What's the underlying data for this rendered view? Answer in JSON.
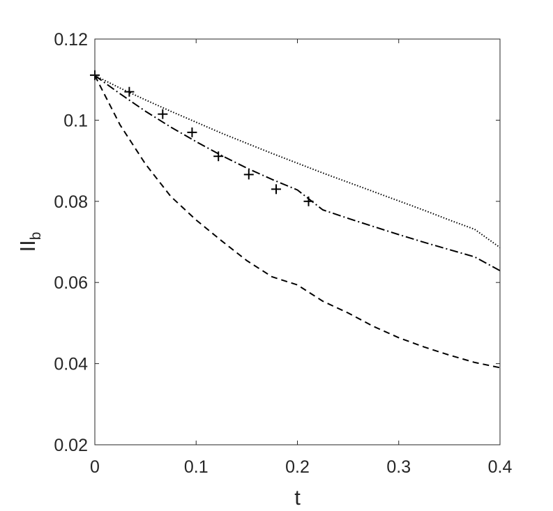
{
  "chart_data": {
    "type": "line",
    "xlabel": "t",
    "ylabel": "II",
    "ylabel_subscript": "b",
    "xlim": [
      0,
      0.4
    ],
    "ylim": [
      0.02,
      0.12
    ],
    "xticks": [
      0,
      0.1,
      0.2,
      0.3,
      0.4
    ],
    "xtick_labels": [
      "0",
      "0.1",
      "0.2",
      "0.3",
      "0.4"
    ],
    "yticks": [
      0.02,
      0.04,
      0.06,
      0.08,
      0.1,
      0.12
    ],
    "ytick_labels": [
      "0.02",
      "0.04",
      "0.06",
      "0.08",
      "0.1",
      "0.12"
    ],
    "grid": false,
    "legend": null,
    "series": [
      {
        "style": "dotted",
        "color": "#000000",
        "x": [
          0,
          0.025,
          0.05,
          0.075,
          0.1,
          0.125,
          0.15,
          0.175,
          0.2,
          0.225,
          0.25,
          0.275,
          0.3,
          0.325,
          0.35,
          0.375,
          0.4
        ],
        "y": [
          0.111,
          0.1079,
          0.105,
          0.1022,
          0.0995,
          0.0968,
          0.0943,
          0.0918,
          0.0894,
          0.087,
          0.0847,
          0.0824,
          0.0801,
          0.0778,
          0.0754,
          0.0731,
          0.0686
        ]
      },
      {
        "style": "dashdot",
        "color": "#000000",
        "x": [
          0,
          0.025,
          0.05,
          0.075,
          0.1,
          0.125,
          0.15,
          0.175,
          0.2,
          0.225,
          0.25,
          0.275,
          0.3,
          0.325,
          0.35,
          0.375,
          0.4
        ],
        "y": [
          0.111,
          0.1065,
          0.1022,
          0.0983,
          0.0947,
          0.0913,
          0.0882,
          0.0854,
          0.0828,
          0.0779,
          0.0758,
          0.0738,
          0.0718,
          0.0699,
          0.0681,
          0.0663,
          0.0629
        ]
      },
      {
        "style": "dashed",
        "color": "#000000",
        "x": [
          0,
          0.025,
          0.05,
          0.075,
          0.1,
          0.125,
          0.15,
          0.175,
          0.2,
          0.225,
          0.25,
          0.275,
          0.3,
          0.325,
          0.35,
          0.375,
          0.4
        ],
        "y": [
          0.111,
          0.0988,
          0.0892,
          0.0812,
          0.0754,
          0.0703,
          0.0654,
          0.0614,
          0.0594,
          0.0554,
          0.0525,
          0.0492,
          0.0464,
          0.0441,
          0.0421,
          0.0403,
          0.039
        ]
      },
      {
        "style": "markers",
        "marker": "+",
        "color": "#000000",
        "x": [
          0,
          0.034,
          0.067,
          0.096,
          0.122,
          0.152,
          0.179,
          0.211
        ],
        "y": [
          0.1111,
          0.107,
          0.1015,
          0.097,
          0.0911,
          0.0866,
          0.083,
          0.08
        ]
      }
    ]
  }
}
